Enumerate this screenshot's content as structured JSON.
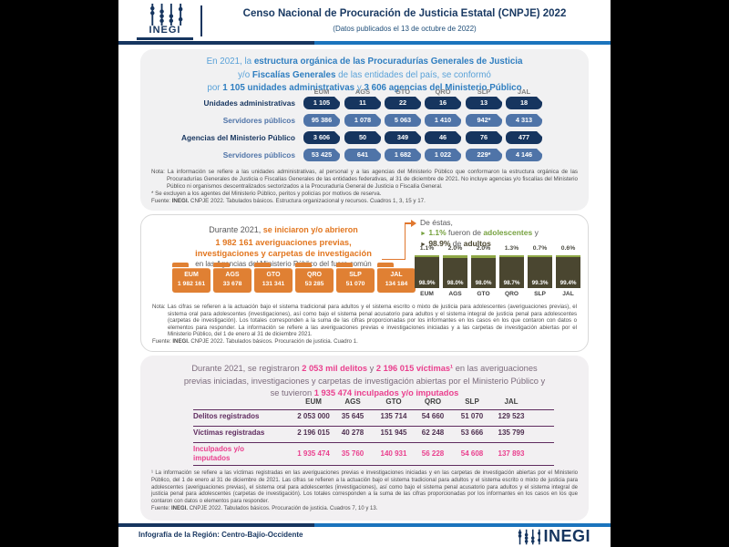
{
  "header": {
    "logo_text": "INEGI",
    "title": "Censo Nacional de Procuración de Justicia Estatal (CNPJE) 2022",
    "subtitle": "(Datos publicados el 13 de octubre de 2022)"
  },
  "section1": {
    "headline": {
      "a": "En 2021, la ",
      "b": "estructura orgánica de las Procuradurías Generales de Justicia",
      "c": "y/o ",
      "d": "Fiscalías Generales",
      "e": " de las entidades del país, se conformó",
      "f": "por ",
      "g": "1 105 unidades administrativas",
      "h": " y ",
      "i": "3 606 agencias del Ministerio Público"
    },
    "columns": [
      "EUM",
      "AGS",
      "GTO",
      "QRO",
      "SLP",
      "JAL"
    ],
    "rows": [
      {
        "label": "Unidades administrativas",
        "style": "dark",
        "values": [
          "1 105",
          "11",
          "22",
          "16",
          "13",
          "18"
        ]
      },
      {
        "label": "Servidores públicos",
        "style": "light",
        "values": [
          "95 386",
          "1 078",
          "5 063",
          "1 410",
          "942*",
          "4 313"
        ]
      },
      {
        "label": "Agencias del Ministerio Público",
        "style": "dark",
        "values": [
          "3 606",
          "50",
          "349",
          "46",
          "76",
          "477"
        ]
      },
      {
        "label": "Servidores públicos",
        "style": "light",
        "values": [
          "53 425",
          "641",
          "1 682",
          "1 022",
          "229*",
          "4 146"
        ]
      }
    ],
    "note_label": "Nota:",
    "note_text": "La información se refiere a las unidades administrativas, al personal y a las agencias del Ministerio Público que conformaron la estructura orgánica de las Procuradurías Generales de Justicia o Fiscalías Generales de las entidades federativas, al 31 de diciembre de 2021. No incluye agencias y/o fiscalías del Ministerio Público ni organismos descentralizados sectorizados a la Procuraduría General de Justicia o Fiscalía General.",
    "note_asterisk": "* Se excluyen a los agentes del Ministerio Público, peritos y policías por motivos de reserva.",
    "source": {
      "pre": "Fuente: ",
      "bold": "INEGI.",
      "rest": " CNPJE 2022. Tabulados básicos. Estructura organizacional y recursos. Cuadros 1, 3, 15 y 17."
    }
  },
  "section2": {
    "headline": {
      "a": "Durante 2021, ",
      "b": "se iniciaron y/o abrieron",
      "c": "1 982 161 averiguaciones previas,",
      "d": "investigaciones y carpetas de investigación",
      "e": "en las Agencias del Ministerio Público del fuero común"
    },
    "folders": [
      {
        "state": "EUM",
        "value": "1 982 161"
      },
      {
        "state": "AGS",
        "value": "33 678"
      },
      {
        "state": "GTO",
        "value": "131 341"
      },
      {
        "state": "QRO",
        "value": "53 285"
      },
      {
        "state": "SLP",
        "value": "51 070"
      },
      {
        "state": "JAL",
        "value": "134 184"
      }
    ],
    "breakdown": {
      "intro": "De éstas,",
      "line1": {
        "bullet": "►",
        "pct": "1.1%",
        "mid": " fueron de ",
        "word": "adolescentes",
        "end": " y"
      },
      "line2": {
        "bullet": "►",
        "pct": "98.9%",
        "mid": " de ",
        "word": "adultos"
      }
    },
    "note_label": "Nota:",
    "note_text": "Las cifras se refieren a la actuación bajo el sistema tradicional para adultos y el sistema escrito o mixto de justicia para adolescentes (averiguaciones previas), el sistema oral para adolescentes (investigaciones), así como bajo el sistema penal acusatorio para adultos y el sistema integral de justicia penal para adolescentes (carpetas de investigación). Los totales corresponden a la suma de las cifras proporcionadas por los informantes en los casos en los que contaron con datos o elementos para responder. La información se refiere a las averiguaciones previas e investigaciones iniciadas y a las carpetas de investigación abiertas por el Ministerio Público, del 1 de enero al 31 de diciembre 2021.",
    "source": {
      "pre": "Fuente: ",
      "bold": "INEGI.",
      "rest": " CNPJE 2022. Tabulados básicos. Procuración de justicia. Cuadro 1."
    }
  },
  "chart_data": {
    "type": "bar",
    "stacked": true,
    "title": "",
    "categories": [
      "EUM",
      "AGS",
      "GTO",
      "QRO",
      "SLP",
      "JAL"
    ],
    "series": [
      {
        "name": "adolescentes",
        "values": [
          1.1,
          2.0,
          2.0,
          1.3,
          0.7,
          0.6
        ]
      },
      {
        "name": "adultos",
        "values": [
          98.9,
          98.0,
          98.0,
          98.7,
          99.3,
          99.4
        ]
      }
    ],
    "unit": "%",
    "ylim": [
      0,
      100
    ],
    "grid": false,
    "legend": false,
    "top_labels": [
      "1.1%",
      "2.0%",
      "2.0%",
      "1.3%",
      "0.7%",
      "0.6%"
    ],
    "inner_labels": [
      "98.9%",
      "98.0%",
      "98.0%",
      "98.7%",
      "99.3%",
      "99.4%"
    ],
    "colors": {
      "adolescentes": "#8fa846",
      "adultos": "#4a4630"
    }
  },
  "section3": {
    "headline": {
      "a": "Durante 2021, se registraron ",
      "b": "2 053 mil delitos",
      "c": " y ",
      "d": "2 196 015 víctimas¹",
      "e": " en las averiguaciones",
      "f": "previas iniciadas, investigaciones y carpetas de investigación abiertas por el Ministerio Público y",
      "g": "se tuvieron ",
      "h": "1 935 474 inculpados y/o imputados"
    },
    "table": {
      "columns": [
        "EUM",
        "AGS",
        "GTO",
        "QRO",
        "SLP",
        "JAL"
      ],
      "rows": [
        {
          "label": "Delitos registrados",
          "highlight": false,
          "values": [
            "2 053 000",
            "35 645",
            "135 714",
            "54 660",
            "51 070",
            "129 523"
          ]
        },
        {
          "label": "Víctimas registradas",
          "highlight": false,
          "values": [
            "2 196 015",
            "40 278",
            "151 945",
            "62 248",
            "53 666",
            "135 799"
          ]
        },
        {
          "label": "Inculpados y/o imputados",
          "highlight": true,
          "values": [
            "1 935 474",
            "35 760",
            "140 931",
            "56 228",
            "54 608",
            "137 893"
          ]
        }
      ]
    },
    "footnote": "¹ La información se refiere a las víctimas registradas en las averiguaciones previas e investigaciones iniciadas y en las carpetas de investigación abiertas por el Ministerio Público, del 1 de enero al 31 de diciembre de 2021. Las cifras se refieren a la actuación bajo el sistema tradicional para adultos y el sistema escrito o mixto de justicia para adolescentes (averiguaciones previas), el sistema oral para adolescentes (investigaciones), así como bajo el sistema penal acusatorio para adultos y el sistema integral de justicia penal para adolescentes (carpetas de investigación). Los totales corresponden a la suma de las cifras proporcionadas por los informantes en los casos en los que contaron con datos o elementos para responder.",
    "source": {
      "pre": "Fuente: ",
      "bold": "INEGI.",
      "rest": " CNPJE 2022. Tabulados básicos. Procuración de justicia. Cuadros 7, 10 y 13."
    }
  },
  "footer": {
    "text": "Infografía de la Región: Centro-Bajío-Occidente",
    "logo_text": "INEGI"
  },
  "colors": {
    "navy": "#16355f",
    "blue": "#1b74bd",
    "headline_blue_bold": "#2f7ec0",
    "headline_blue_light": "#5aa2d8",
    "badge_light": "#4f74a8",
    "orange": "#e0772e",
    "olive": "#4a4630",
    "green_cap": "#8fa846",
    "green_text": "#76a13f",
    "pink": "#ea3f8e",
    "purple": "#5f2b5f",
    "note_gray": "#4d4d4d"
  }
}
